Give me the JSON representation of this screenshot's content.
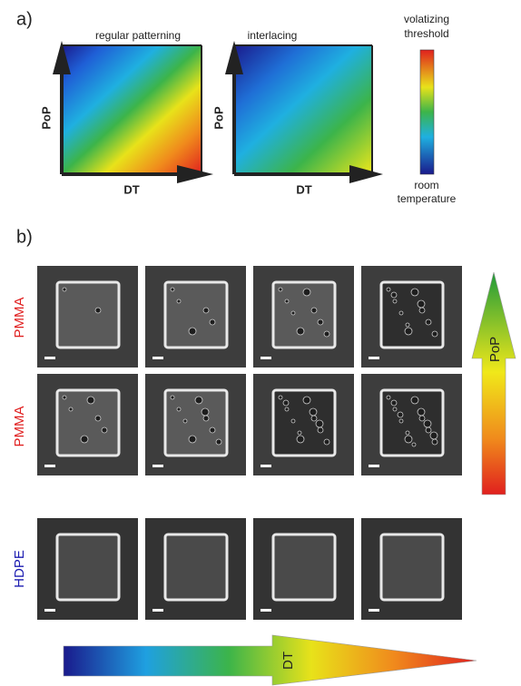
{
  "panel_a": {
    "label": "a)",
    "diagrams": [
      {
        "title": "regular patterning",
        "y_axis": "PoP",
        "x_axis": "DT"
      },
      {
        "title": "interlacing",
        "y_axis": "PoP",
        "x_axis": "DT"
      }
    ],
    "colorbar": {
      "top_label": [
        "volatizing",
        "threshold"
      ],
      "bottom_label": [
        "room",
        "temperature"
      ]
    }
  },
  "panel_b": {
    "label": "b)",
    "rows": [
      {
        "label": "PMMA"
      },
      {
        "label": "PMMA"
      },
      {
        "label": "HDPE"
      }
    ],
    "arrow_vertical": "PoP",
    "arrow_horizontal": "DT"
  }
}
